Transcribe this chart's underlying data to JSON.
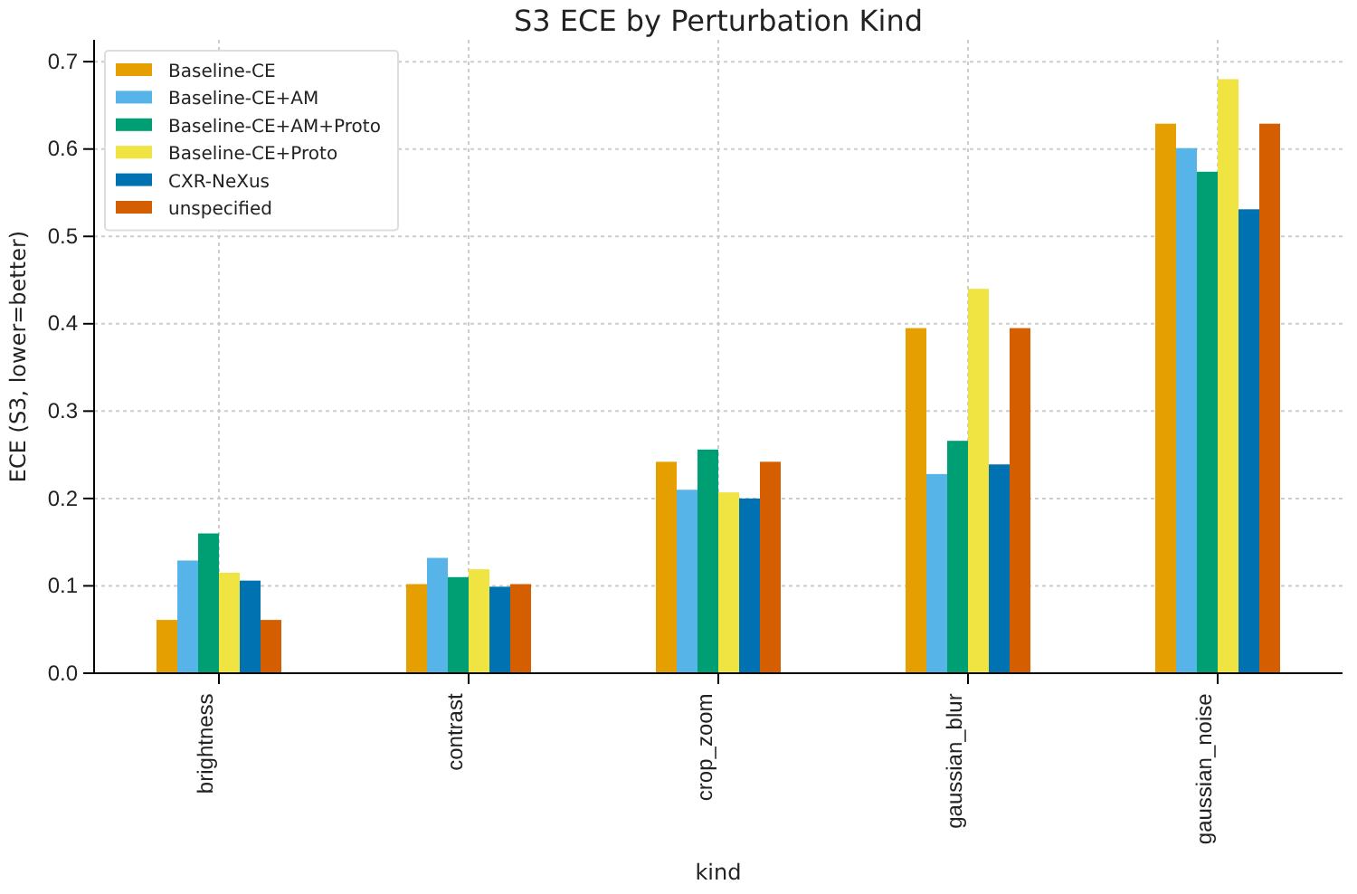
{
  "chart_data": {
    "type": "bar",
    "title": "S3 ECE by Perturbation Kind",
    "xlabel": "kind",
    "ylabel": "ECE (S3, lower=better)",
    "categories": [
      "brightness",
      "contrast",
      "crop_zoom",
      "gaussian_blur",
      "gaussian_noise"
    ],
    "series": [
      {
        "name": "Baseline-CE",
        "color": "#e69f00",
        "values": [
          0.061,
          0.102,
          0.242,
          0.395,
          0.629
        ]
      },
      {
        "name": "Baseline-CE+AM",
        "color": "#56b4e9",
        "values": [
          0.129,
          0.132,
          0.21,
          0.228,
          0.601
        ]
      },
      {
        "name": "Baseline-CE+AM+Proto",
        "color": "#009e73",
        "values": [
          0.16,
          0.11,
          0.256,
          0.266,
          0.574
        ]
      },
      {
        "name": "Baseline-CE+Proto",
        "color": "#f0e442",
        "values": [
          0.115,
          0.119,
          0.207,
          0.44,
          0.68
        ]
      },
      {
        "name": "CXR-NeXus",
        "color": "#0072b2",
        "values": [
          0.106,
          0.099,
          0.2,
          0.239,
          0.531
        ]
      },
      {
        "name": "unspecified",
        "color": "#d55e00",
        "values": [
          0.061,
          0.102,
          0.242,
          0.395,
          0.629
        ]
      }
    ],
    "ylim": [
      0,
      0.725
    ],
    "yticks": [
      {
        "value": 0,
        "label": "0.0"
      },
      0.1,
      0.2,
      0.3,
      0.4,
      0.5,
      0.6,
      0.7
    ],
    "grid": true,
    "legend": "top left"
  }
}
